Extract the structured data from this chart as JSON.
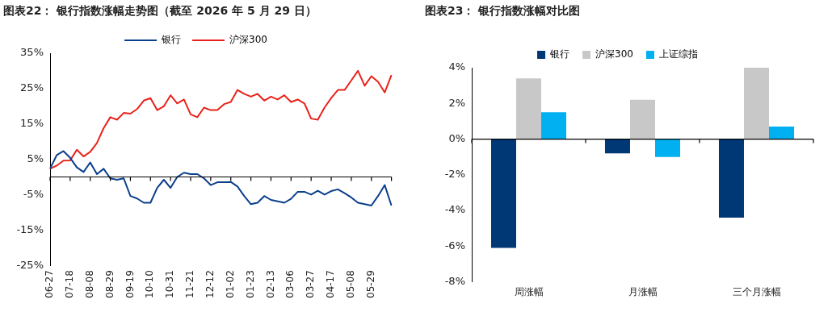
{
  "chart_data": [
    {
      "type": "line",
      "title": "图表22：  银行指数涨幅走势图（截至 2026 年 5 月 29 日）",
      "categories": [
        "06-27",
        null,
        null,
        "07-18",
        null,
        null,
        "08-08",
        null,
        null,
        "08-29",
        null,
        null,
        "09-19",
        null,
        null,
        "10-10",
        null,
        null,
        "10-31",
        null,
        null,
        "11-21",
        null,
        null,
        "12-12",
        null,
        null,
        "01-02",
        null,
        null,
        "01-23",
        null,
        null,
        "02-13",
        null,
        null,
        "03-06",
        null,
        null,
        "03-27",
        null,
        null,
        "04-17",
        null,
        null,
        "05-08",
        null,
        null,
        "05-29",
        null,
        null,
        null
      ],
      "series": [
        {
          "name": "银行",
          "color": "#0b3f8c",
          "values": [
            2.3,
            6.2,
            7.3,
            5.4,
            2.7,
            1.4,
            4.1,
            0.8,
            2.3,
            -0.4,
            -0.8,
            -0.4,
            -5.4,
            -6.1,
            -7.3,
            -7.3,
            -3.1,
            -0.8,
            -3.1,
            0,
            1.2,
            0.8,
            0.8,
            -0.4,
            -2.3,
            -1.5,
            -1.5,
            -1.4,
            -2.7,
            -5.4,
            -7.7,
            -7.3,
            -5.4,
            -6.5,
            -6.9,
            -7.3,
            -6.2,
            -4.2,
            -4.2,
            -5.0,
            -3.9,
            -5.0,
            -4.0,
            -3.5,
            -4.6,
            -5.8,
            -7.3,
            -7.7,
            -8.1,
            -5.4,
            -2.3,
            -8.1
          ]
        },
        {
          "name": "沪深300",
          "color": "#e8231b",
          "values": [
            2.3,
            3.2,
            4.6,
            4.7,
            7.7,
            5.8,
            7.1,
            9.6,
            13.8,
            16.9,
            16.2,
            18.1,
            17.9,
            19.2,
            21.6,
            22.3,
            18.9,
            20.0,
            23.1,
            20.8,
            21.9,
            17.7,
            16.9,
            19.6,
            18.9,
            18.9,
            20.6,
            21.2,
            24.6,
            23.5,
            22.7,
            23.5,
            21.6,
            22.7,
            21.9,
            23.1,
            21.2,
            21.9,
            20.8,
            16.5,
            16.2,
            19.6,
            22.3,
            24.6,
            24.6,
            27.3,
            30.0,
            25.8,
            28.5,
            26.9,
            23.9,
            28.8
          ]
        }
      ],
      "ylim": [
        -25,
        35
      ],
      "yticks": [
        {
          "value": -25,
          "label": "-25%"
        },
        {
          "value": -15,
          "label": "-15%"
        },
        {
          "value": -5,
          "label": "-5%"
        },
        {
          "value": 5,
          "label": "5%"
        },
        {
          "value": 15,
          "label": "15%"
        },
        {
          "value": 25,
          "label": "25%"
        },
        {
          "value": 35,
          "label": "35%"
        }
      ],
      "ref_lines": [
        {
          "axis": "y",
          "value": 0,
          "color": "#000000"
        }
      ],
      "grid": false,
      "legend": "top",
      "marker": "none",
      "line_style": "solid"
    },
    {
      "type": "bar",
      "title": "图表23：  银行指数涨幅对比图",
      "categories": [
        "周涨幅",
        "月涨幅",
        "三个月涨幅"
      ],
      "series": [
        {
          "name": "银行",
          "color": "#003775",
          "values": [
            -6.1,
            -0.8,
            -4.4
          ]
        },
        {
          "name": "沪深300",
          "color": "#c8c8c8",
          "values": [
            3.4,
            2.2,
            4.0
          ]
        },
        {
          "name": "上证综指",
          "color": "#00b0f0",
          "values": [
            1.5,
            -1.0,
            0.7
          ]
        }
      ],
      "ylim": [
        -8,
        4
      ],
      "yticks": [
        {
          "value": -8,
          "label": "-8%"
        },
        {
          "value": -6,
          "label": "-6%"
        },
        {
          "value": -4,
          "label": "-4%"
        },
        {
          "value": -2,
          "label": "-2%"
        },
        {
          "value": 0,
          "label": "0%"
        },
        {
          "value": 2,
          "label": "2%"
        },
        {
          "value": 4,
          "label": "4%"
        }
      ],
      "ref_lines": [
        {
          "axis": "y",
          "value": 0,
          "color": "#000000"
        }
      ],
      "grid": false,
      "legend": "top"
    }
  ]
}
